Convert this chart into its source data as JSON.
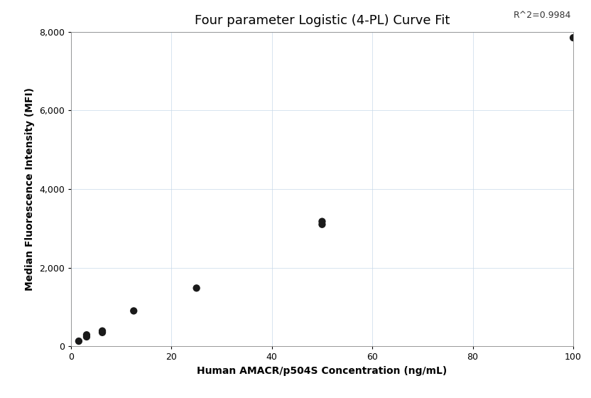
{
  "title": "Four parameter Logistic (4-PL) Curve Fit",
  "xlabel": "Human AMACR/p504S Concentration (ng/mL)",
  "ylabel": "Median Fluorescence Intensity (MFI)",
  "scatter_x": [
    1.5625,
    3.125,
    3.125,
    6.25,
    6.25,
    12.5,
    25,
    50,
    50,
    100
  ],
  "scatter_y": [
    130,
    240,
    290,
    350,
    390,
    900,
    1480,
    3100,
    3175,
    7850
  ],
  "xlim": [
    0,
    100
  ],
  "ylim": [
    0,
    8000
  ],
  "xticks": [
    0,
    20,
    40,
    60,
    80,
    100
  ],
  "yticks": [
    0,
    2000,
    4000,
    6000,
    8000
  ],
  "r_squared": "R^2=0.9984",
  "dot_color": "#1a1a1a",
  "dot_size": 55,
  "line_color": "#999999",
  "line_width": 1.3,
  "grid_color": "#c5d8e8",
  "grid_alpha": 0.8,
  "background_color": "#ffffff",
  "title_fontsize": 13,
  "label_fontsize": 10,
  "tick_fontsize": 9,
  "annotation_fontsize": 9
}
